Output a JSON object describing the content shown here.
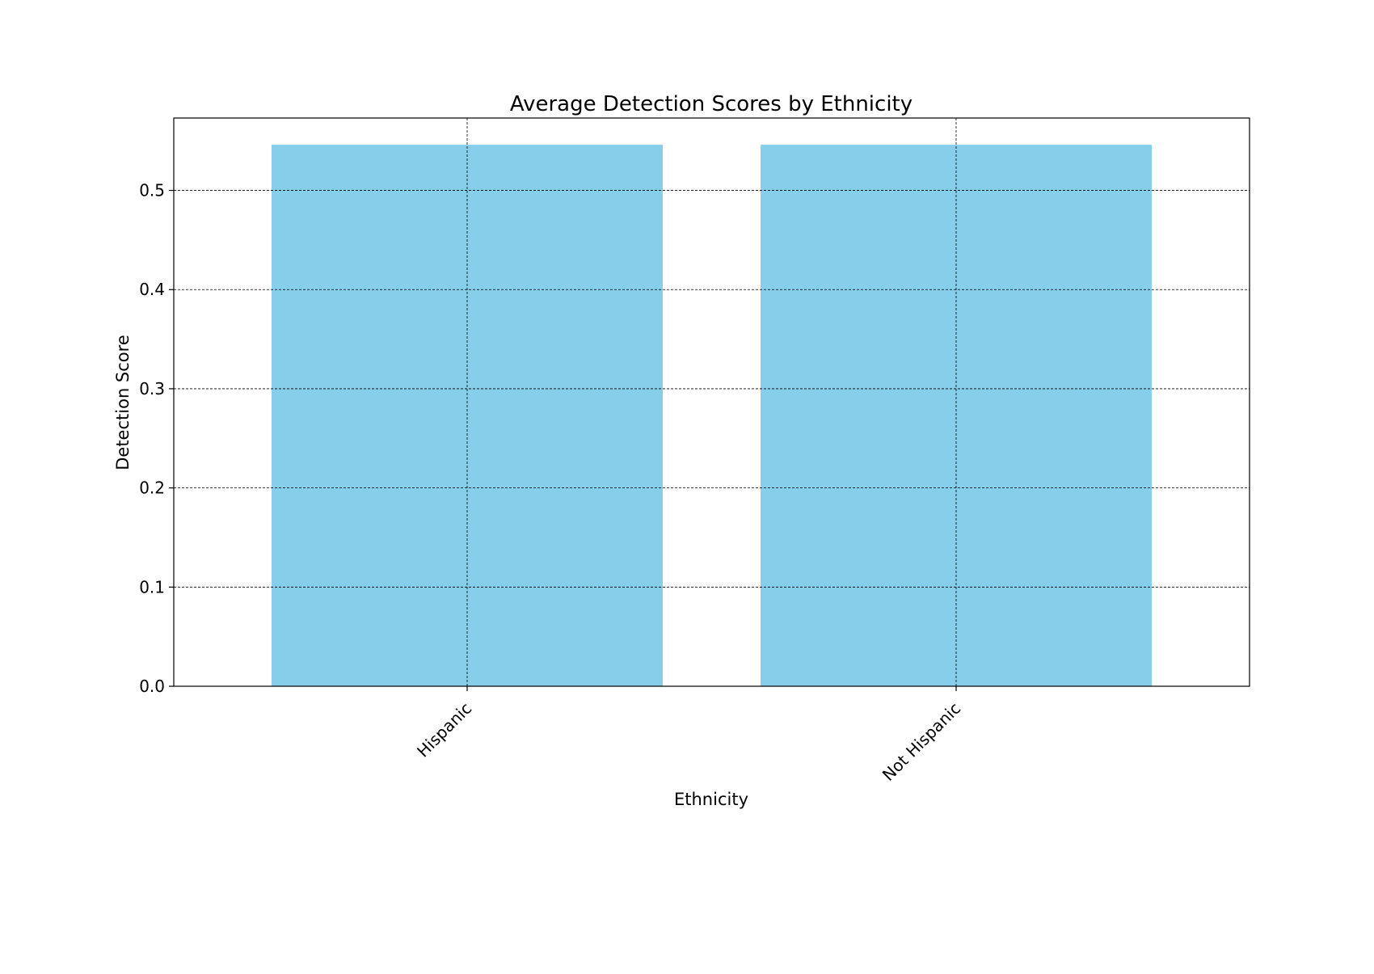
{
  "chart_data": {
    "type": "bar",
    "title": "Average Detection Scores by Ethnicity",
    "xlabel": "Ethnicity",
    "ylabel": "Detection Score",
    "categories": [
      "Hispanic",
      "Not Hispanic"
    ],
    "values": [
      0.546,
      0.546
    ],
    "ylim": [
      0,
      0.573
    ],
    "yticks": [
      0.0,
      0.1,
      0.2,
      0.3,
      0.4,
      0.5
    ],
    "ytick_labels": [
      "0.0",
      "0.1",
      "0.2",
      "0.3",
      "0.4",
      "0.5"
    ],
    "grid": true,
    "bar_color": "#87CEEB",
    "grid_color": "#000000",
    "legend": "none"
  }
}
